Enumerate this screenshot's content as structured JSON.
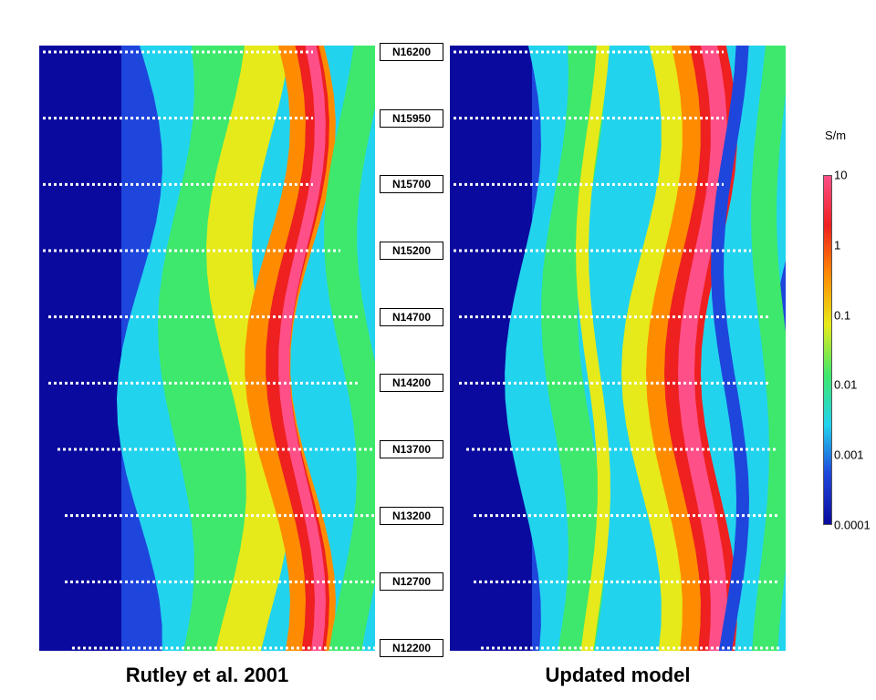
{
  "chart_data": {
    "type": "heatmap",
    "panels": [
      {
        "title": "Rutley et al. 2001"
      },
      {
        "title": "Updated model"
      }
    ],
    "line_labels": [
      "N16200",
      "N15950",
      "N15700",
      "N15200",
      "N14700",
      "N14200",
      "N13700",
      "N13200",
      "N12700",
      "N12200"
    ],
    "colorbar": {
      "unit": "S/m",
      "scale": "log",
      "ticks": [
        "10",
        "1",
        "0.1",
        "0.01",
        "0.001",
        "0.0001"
      ],
      "range": [
        0.0001,
        10
      ]
    },
    "colors": [
      "#0a0a9e",
      "#1e46dc",
      "#22d3ee",
      "#3ee86c",
      "#e6ea1a",
      "#ff8c00",
      "#ee2020",
      "#ff4f88"
    ]
  }
}
